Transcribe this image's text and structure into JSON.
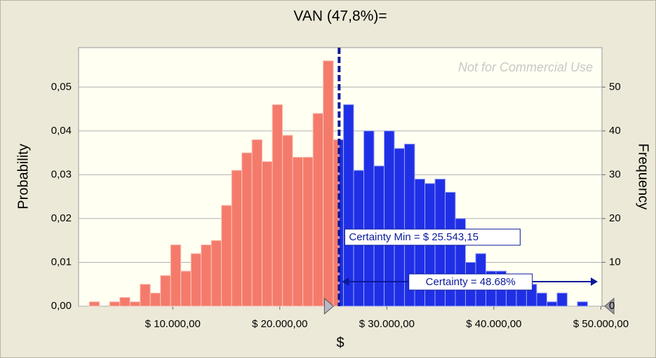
{
  "chart_data": {
    "type": "histogram",
    "title": "VAN (47,8%)=",
    "xlabel": "$",
    "ylabel": "Probability",
    "y2label": "Frequency",
    "watermark": "Not for Commercial Use",
    "certainty_min": {
      "value": 25543.15,
      "label": "Certainty Min = $ 25.543,15"
    },
    "certainty_label": "Certainty = 48.68%",
    "color_below": "#f47b6b",
    "color_above": "#1f2fe6",
    "grid": true,
    "bins": [
      2200,
      3150,
      4100,
      5050,
      6000,
      6950,
      7900,
      8850,
      9800,
      10750,
      11700,
      12650,
      13600,
      14550,
      15500,
      16450,
      17400,
      18350,
      19300,
      20250,
      21200,
      22150,
      23100,
      24050,
      25000,
      25950,
      26900,
      27850,
      28800,
      29750,
      30700,
      31650,
      32600,
      33550,
      34500,
      35450,
      36400,
      37350,
      38300,
      39250,
      40200,
      41150,
      42100,
      43050,
      44000,
      44950,
      45900,
      46850,
      47800,
      48750
    ],
    "series": [
      {
        "name": "Frequency",
        "axis": "y2",
        "values": [
          1,
          0,
          1,
          2,
          1,
          5,
          3,
          7,
          14,
          8,
          12,
          14,
          15,
          23,
          31,
          35,
          38,
          33,
          46,
          39,
          34,
          34,
          44,
          56,
          38,
          46,
          31,
          40,
          32,
          40,
          36,
          37,
          29,
          28,
          29,
          26,
          20,
          10,
          12,
          8,
          8,
          7,
          6,
          5,
          3,
          1,
          3,
          0,
          1
        ]
      }
    ],
    "xlim": [
      1200,
      50100
    ],
    "xticks": [
      {
        "value": 10000,
        "label": "$ 10.000,00"
      },
      {
        "value": 20000,
        "label": "$ 20.000,00"
      },
      {
        "value": 30000,
        "label": "$ 30.000,00"
      },
      {
        "value": 40000,
        "label": "$ 40.000,00"
      },
      {
        "value": 50000,
        "label": "$ 50.000,00"
      }
    ],
    "ylim": [
      0,
      0.059
    ],
    "yticks": [
      {
        "value": 0,
        "label": "0,00"
      },
      {
        "value": 0.01,
        "label": "0,01"
      },
      {
        "value": 0.02,
        "label": "0,02"
      },
      {
        "value": 0.03,
        "label": "0,03"
      },
      {
        "value": 0.04,
        "label": "0,04"
      },
      {
        "value": 0.05,
        "label": "0,05"
      }
    ],
    "y2lim": [
      0,
      59
    ],
    "y2ticks": [
      0,
      10,
      20,
      30,
      40,
      50
    ]
  }
}
